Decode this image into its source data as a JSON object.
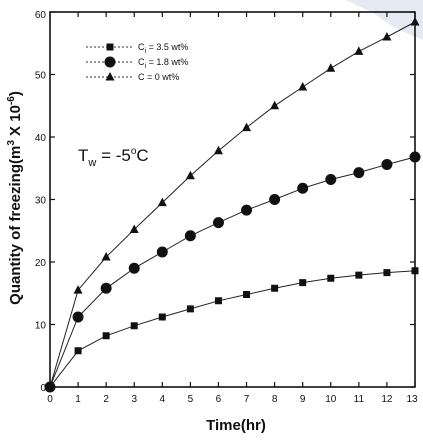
{
  "chart_data": {
    "type": "line",
    "xlabel": "Time(hr)",
    "ylabel_prefix": "Quantity of freezing(m",
    "ylabel_sup": "3",
    "ylabel_mid": " X 10",
    "ylabel_sup2": "-6",
    "ylabel_suffix": ")",
    "xlim": [
      0,
      13
    ],
    "ylim": [
      0,
      60
    ],
    "x_ticks": [
      0,
      1,
      2,
      3,
      4,
      5,
      6,
      7,
      8,
      9,
      10,
      11,
      12,
      13
    ],
    "y_ticks": [
      0,
      10,
      20,
      30,
      40,
      50,
      60
    ],
    "grid": false,
    "legend_position": "top-left",
    "annotation": {
      "prefix": "T",
      "sub": "w",
      "text": " = -5",
      "deg": "o",
      "suffix": "C"
    },
    "series": [
      {
        "name": "C",
        "legend_sub": "i",
        "legend_text": " = 3.5 wt%",
        "marker": "square",
        "x": [
          0,
          1,
          2,
          3,
          4,
          5,
          6,
          7,
          8,
          9,
          10,
          11,
          12,
          13
        ],
        "y": [
          0,
          5.8,
          8.2,
          9.8,
          11.2,
          12.5,
          13.8,
          14.8,
          15.8,
          16.7,
          17.4,
          17.9,
          18.3,
          18.6
        ]
      },
      {
        "name": "C",
        "legend_sub": "i",
        "legend_text": " = 1.8 wt%",
        "marker": "circle",
        "x": [
          0,
          1,
          2,
          3,
          4,
          5,
          6,
          7,
          8,
          9,
          10,
          11,
          12,
          13
        ],
        "y": [
          0,
          11.2,
          15.8,
          19.0,
          21.6,
          24.2,
          26.3,
          28.3,
          30.0,
          31.8,
          33.2,
          34.3,
          35.6,
          36.8
        ]
      },
      {
        "name": "C",
        "legend_sub": "",
        "legend_text": " = 0 wt%",
        "marker": "triangle",
        "x": [
          0,
          1,
          2,
          3,
          4,
          5,
          6,
          7,
          8,
          9,
          10,
          11,
          12,
          13
        ],
        "y": [
          0,
          15.5,
          20.8,
          25.2,
          29.5,
          33.8,
          37.8,
          41.5,
          45.0,
          48.0,
          51.0,
          53.7,
          56.0,
          58.4
        ]
      }
    ]
  }
}
